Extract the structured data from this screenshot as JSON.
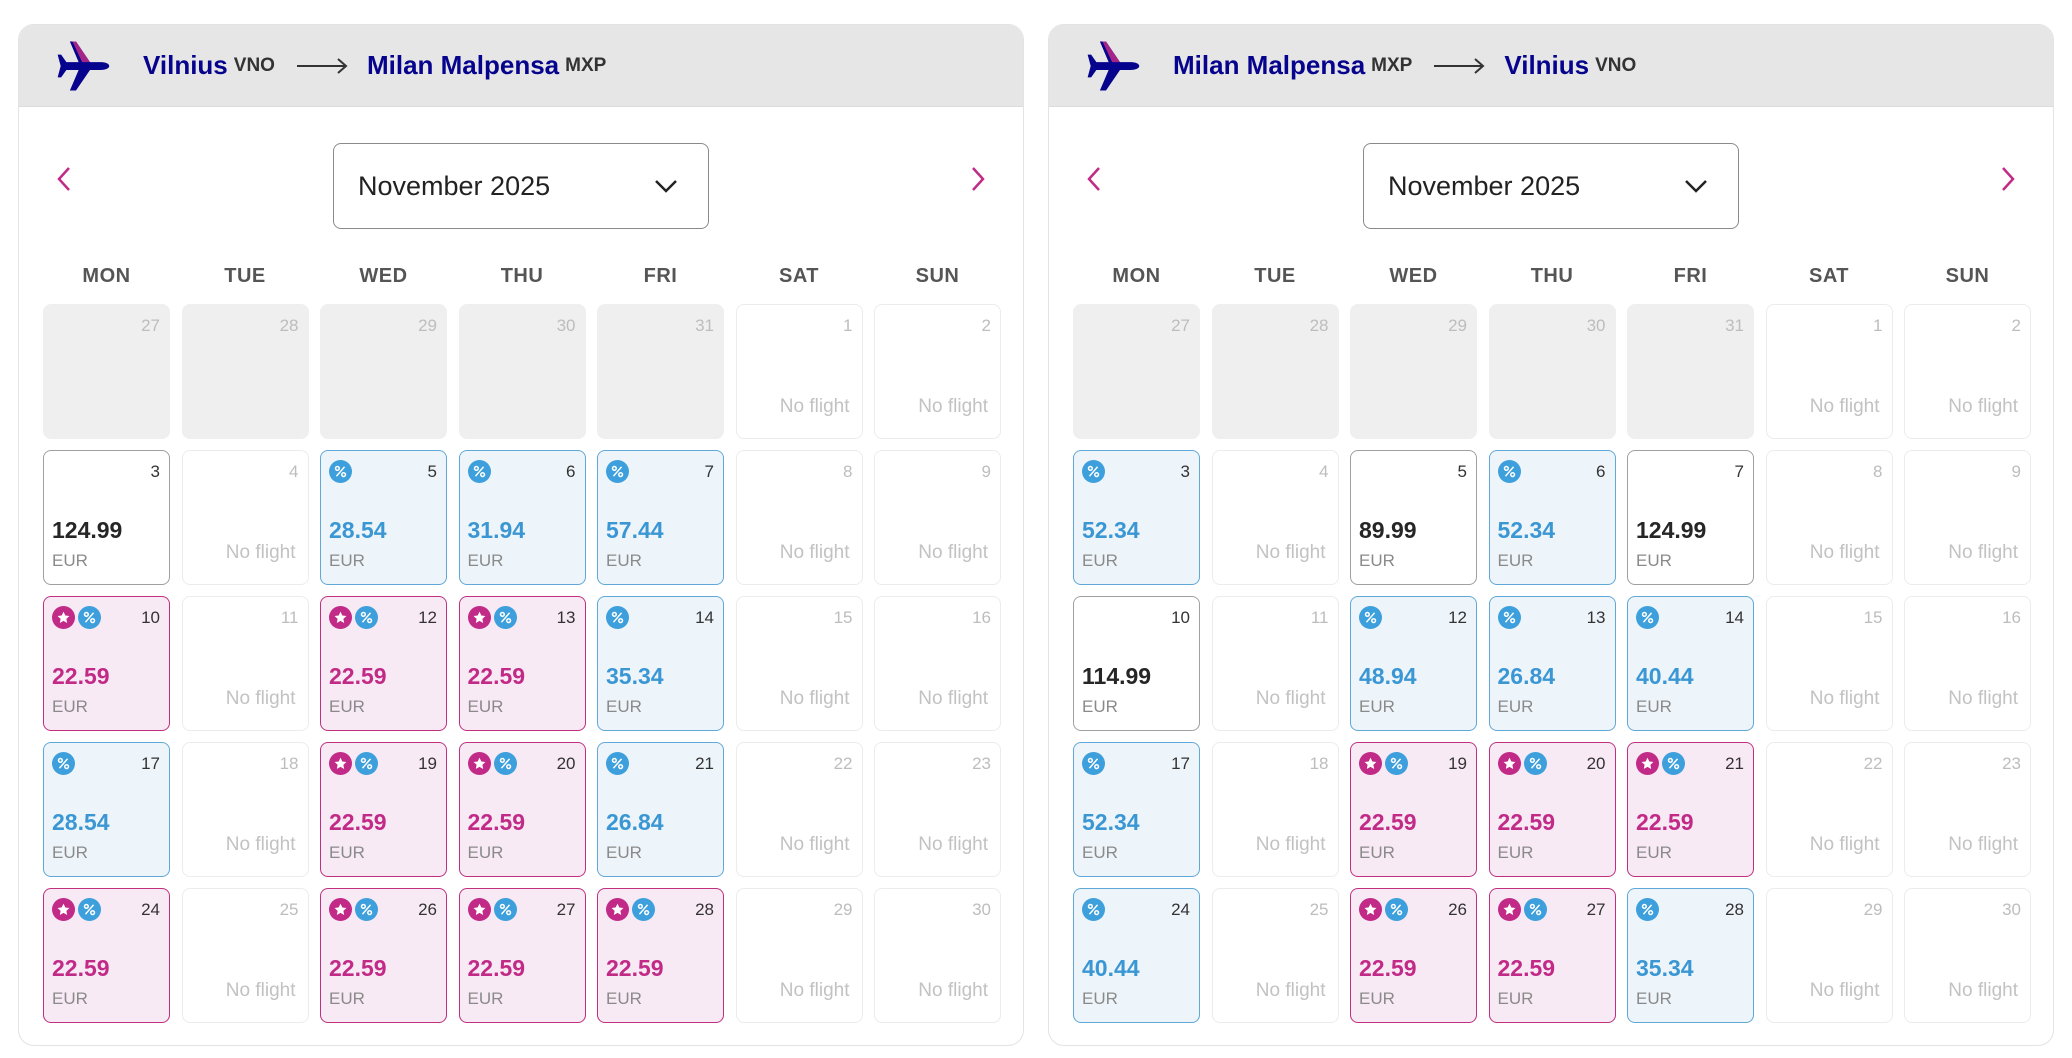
{
  "colors": {
    "brand_navy": "#06038d",
    "accent_magenta": "#c12a86",
    "discount_blue": "#3d9fdc",
    "header_gray": "#e6e6e6"
  },
  "icons": {
    "plane": "airplane-icon",
    "route_arrow": "arrow-right-icon",
    "prev": "chevron-left-icon",
    "next": "chevron-right-icon",
    "dropdown": "chevron-down-icon",
    "club_badge": "star-badge-icon",
    "discount_badge": "percent-badge-icon"
  },
  "weekdays": [
    "MON",
    "TUE",
    "WED",
    "THU",
    "FRI",
    "SAT",
    "SUN"
  ],
  "no_flight_label": "No flight",
  "currency": "EUR",
  "calendars": [
    {
      "from": {
        "city": "Vilnius",
        "code": "VNO"
      },
      "to": {
        "city": "Milan Malpensa",
        "code": "MXP"
      },
      "month_label": "November 2025",
      "days": [
        {
          "day": "27",
          "type": "outside"
        },
        {
          "day": "28",
          "type": "outside"
        },
        {
          "day": "29",
          "type": "outside"
        },
        {
          "day": "30",
          "type": "outside"
        },
        {
          "day": "31",
          "type": "outside"
        },
        {
          "day": "1",
          "type": "nofl"
        },
        {
          "day": "2",
          "type": "nofl"
        },
        {
          "day": "3",
          "type": "regular",
          "price": "124.99"
        },
        {
          "day": "4",
          "type": "nofl"
        },
        {
          "day": "5",
          "type": "discount",
          "price": "28.54"
        },
        {
          "day": "6",
          "type": "discount",
          "price": "31.94"
        },
        {
          "day": "7",
          "type": "discount",
          "price": "57.44"
        },
        {
          "day": "8",
          "type": "nofl"
        },
        {
          "day": "9",
          "type": "nofl"
        },
        {
          "day": "10",
          "type": "club",
          "price": "22.59"
        },
        {
          "day": "11",
          "type": "nofl"
        },
        {
          "day": "12",
          "type": "club",
          "price": "22.59"
        },
        {
          "day": "13",
          "type": "club",
          "price": "22.59"
        },
        {
          "day": "14",
          "type": "discount",
          "price": "35.34"
        },
        {
          "day": "15",
          "type": "nofl"
        },
        {
          "day": "16",
          "type": "nofl"
        },
        {
          "day": "17",
          "type": "discount",
          "price": "28.54"
        },
        {
          "day": "18",
          "type": "nofl"
        },
        {
          "day": "19",
          "type": "club",
          "price": "22.59"
        },
        {
          "day": "20",
          "type": "club",
          "price": "22.59"
        },
        {
          "day": "21",
          "type": "discount",
          "price": "26.84"
        },
        {
          "day": "22",
          "type": "nofl"
        },
        {
          "day": "23",
          "type": "nofl"
        },
        {
          "day": "24",
          "type": "club",
          "price": "22.59"
        },
        {
          "day": "25",
          "type": "nofl"
        },
        {
          "day": "26",
          "type": "club",
          "price": "22.59"
        },
        {
          "day": "27",
          "type": "club",
          "price": "22.59"
        },
        {
          "day": "28",
          "type": "club",
          "price": "22.59"
        },
        {
          "day": "29",
          "type": "nofl"
        },
        {
          "day": "30",
          "type": "nofl"
        }
      ]
    },
    {
      "from": {
        "city": "Milan Malpensa",
        "code": "MXP"
      },
      "to": {
        "city": "Vilnius",
        "code": "VNO"
      },
      "month_label": "November 2025",
      "days": [
        {
          "day": "27",
          "type": "outside"
        },
        {
          "day": "28",
          "type": "outside"
        },
        {
          "day": "29",
          "type": "outside"
        },
        {
          "day": "30",
          "type": "outside"
        },
        {
          "day": "31",
          "type": "outside"
        },
        {
          "day": "1",
          "type": "nofl"
        },
        {
          "day": "2",
          "type": "nofl"
        },
        {
          "day": "3",
          "type": "discount",
          "price": "52.34"
        },
        {
          "day": "4",
          "type": "nofl"
        },
        {
          "day": "5",
          "type": "regular",
          "price": "89.99"
        },
        {
          "day": "6",
          "type": "discount",
          "price": "52.34"
        },
        {
          "day": "7",
          "type": "regular",
          "price": "124.99"
        },
        {
          "day": "8",
          "type": "nofl"
        },
        {
          "day": "9",
          "type": "nofl"
        },
        {
          "day": "10",
          "type": "regular",
          "price": "114.99"
        },
        {
          "day": "11",
          "type": "nofl"
        },
        {
          "day": "12",
          "type": "discount",
          "price": "48.94"
        },
        {
          "day": "13",
          "type": "discount",
          "price": "26.84"
        },
        {
          "day": "14",
          "type": "discount",
          "price": "40.44"
        },
        {
          "day": "15",
          "type": "nofl"
        },
        {
          "day": "16",
          "type": "nofl"
        },
        {
          "day": "17",
          "type": "discount",
          "price": "52.34"
        },
        {
          "day": "18",
          "type": "nofl"
        },
        {
          "day": "19",
          "type": "club",
          "price": "22.59"
        },
        {
          "day": "20",
          "type": "club",
          "price": "22.59"
        },
        {
          "day": "21",
          "type": "club",
          "price": "22.59"
        },
        {
          "day": "22",
          "type": "nofl"
        },
        {
          "day": "23",
          "type": "nofl"
        },
        {
          "day": "24",
          "type": "discount",
          "price": "40.44"
        },
        {
          "day": "25",
          "type": "nofl"
        },
        {
          "day": "26",
          "type": "club",
          "price": "22.59"
        },
        {
          "day": "27",
          "type": "club",
          "price": "22.59"
        },
        {
          "day": "28",
          "type": "discount",
          "price": "35.34"
        },
        {
          "day": "29",
          "type": "nofl"
        },
        {
          "day": "30",
          "type": "nofl"
        }
      ]
    }
  ]
}
